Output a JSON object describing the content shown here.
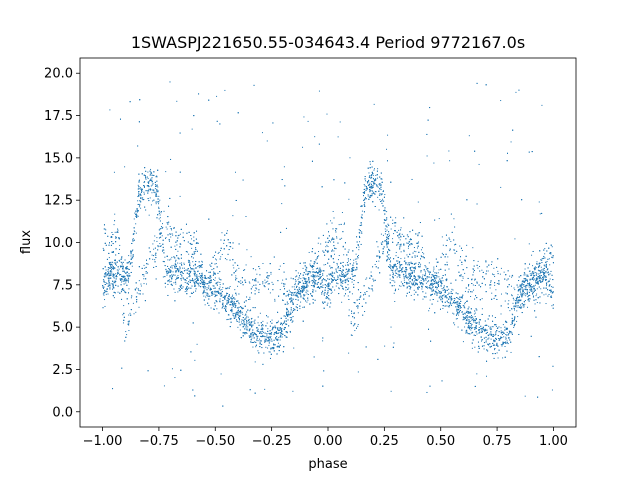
{
  "chart_data": {
    "type": "scatter",
    "title": "1SWASPJ221650.55-034643.4 Period 9772167.0s",
    "xlabel": "phase",
    "ylabel": "flux",
    "xlim": [
      -1.1,
      1.1
    ],
    "ylim": [
      -0.9,
      20.9
    ],
    "x_ticks": [
      -1.0,
      -0.75,
      -0.5,
      -0.25,
      0.0,
      0.25,
      0.5,
      0.75,
      1.0
    ],
    "x_tick_labels": [
      "−1.00",
      "−0.75",
      "−0.50",
      "−0.25",
      "0.00",
      "0.25",
      "0.50",
      "0.75",
      "1.00"
    ],
    "y_ticks": [
      0.0,
      2.5,
      5.0,
      7.5,
      10.0,
      12.5,
      15.0,
      17.5,
      20.0
    ],
    "y_tick_labels": [
      "0.0",
      "2.5",
      "5.0",
      "7.5",
      "10.0",
      "12.5",
      "15.0",
      "17.5",
      "20.0"
    ],
    "grid": false,
    "marker_color": "#1f77b4",
    "phase_range": [
      -1.0,
      1.0
    ],
    "periodic_in_phase": 1.0,
    "series": [
      {
        "profile_points": [
          [
            -1.0,
            7.0
          ],
          [
            -0.97,
            8.3
          ],
          [
            -0.93,
            8.0
          ],
          [
            -0.88,
            8.2
          ],
          [
            -0.84,
            12.8
          ],
          [
            -0.8,
            13.5
          ],
          [
            -0.76,
            13.3
          ],
          [
            -0.72,
            8.3
          ],
          [
            -0.68,
            8.4
          ],
          [
            -0.64,
            8.0
          ],
          [
            -0.6,
            7.9
          ],
          [
            -0.56,
            7.8
          ],
          [
            -0.52,
            7.4
          ],
          [
            -0.48,
            6.9
          ],
          [
            -0.44,
            6.5
          ],
          [
            -0.4,
            5.9
          ],
          [
            -0.36,
            5.2
          ],
          [
            -0.32,
            4.7
          ],
          [
            -0.28,
            4.5
          ],
          [
            -0.24,
            4.4
          ],
          [
            -0.2,
            4.7
          ],
          [
            -0.16,
            6.5
          ],
          [
            -0.12,
            7.3
          ],
          [
            -0.08,
            7.6
          ],
          [
            -0.04,
            7.9
          ],
          [
            0.0,
            7.0
          ],
          [
            0.03,
            8.3
          ],
          [
            0.07,
            8.0
          ],
          [
            0.12,
            8.2
          ],
          [
            0.16,
            12.8
          ],
          [
            0.2,
            13.5
          ],
          [
            0.24,
            13.3
          ],
          [
            0.28,
            8.3
          ],
          [
            0.32,
            8.4
          ],
          [
            0.36,
            8.0
          ],
          [
            0.4,
            7.9
          ],
          [
            0.44,
            7.8
          ],
          [
            0.48,
            7.4
          ],
          [
            0.52,
            6.9
          ],
          [
            0.56,
            6.5
          ],
          [
            0.6,
            5.9
          ],
          [
            0.64,
            5.2
          ],
          [
            0.68,
            4.7
          ],
          [
            0.72,
            4.5
          ],
          [
            0.76,
            4.4
          ],
          [
            0.8,
            4.7
          ],
          [
            0.84,
            6.5
          ],
          [
            0.88,
            7.3
          ],
          [
            0.92,
            7.6
          ],
          [
            0.96,
            7.9
          ],
          [
            1.0,
            7.0
          ]
        ],
        "secondary_points": [
          [
            -0.97,
            10.0
          ],
          [
            -0.93,
            11.0
          ],
          [
            -0.9,
            5.0
          ],
          [
            -0.72,
            11.0
          ],
          [
            -0.66,
            10.0
          ],
          [
            -0.58,
            9.8
          ],
          [
            -0.55,
            6.8
          ],
          [
            -0.45,
            10.3
          ],
          [
            -0.4,
            7.9
          ],
          [
            -0.32,
            7.5
          ],
          [
            -0.24,
            7.8
          ],
          [
            -0.15,
            7.0
          ],
          [
            -0.07,
            8.4
          ],
          [
            -0.02,
            9.4
          ],
          [
            0.03,
            10.0
          ],
          [
            0.07,
            11.0
          ],
          [
            0.1,
            5.0
          ],
          [
            0.28,
            11.0
          ],
          [
            0.34,
            10.0
          ],
          [
            0.42,
            9.8
          ],
          [
            0.45,
            6.8
          ],
          [
            0.55,
            10.3
          ],
          [
            0.6,
            7.9
          ],
          [
            0.68,
            7.5
          ],
          [
            0.76,
            7.8
          ],
          [
            0.85,
            7.0
          ],
          [
            0.93,
            8.4
          ],
          [
            0.98,
            9.4
          ]
        ]
      }
    ]
  }
}
